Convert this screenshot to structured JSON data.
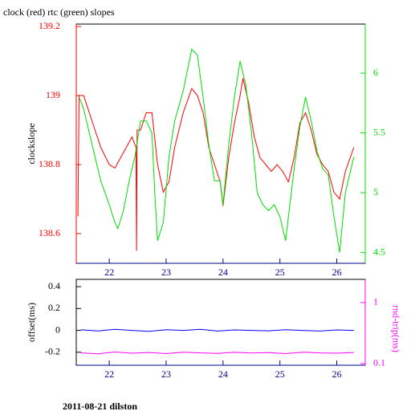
{
  "title": "clock (red) rtc (green) slopes",
  "footer": "2011-08-21 dilston",
  "chart_data": [
    {
      "type": "line",
      "ylabel": "clockslope",
      "xlim": [
        21.42,
        26.5
      ],
      "xticks": [
        22,
        23,
        24,
        25,
        26
      ],
      "xcolor": "#00008b",
      "ylim": [
        138.514,
        139.207
      ],
      "yticks": [
        138.6,
        138.8,
        139,
        139.2
      ],
      "ycolor": "#ff0000",
      "y2lim": [
        4.41,
        6.41
      ],
      "y2ticks": [
        4.5,
        5,
        5.5,
        6
      ],
      "y2color": "#00dd00",
      "series": [
        {
          "name": "clock",
          "color": "#ff0000",
          "x": [
            21.45,
            21.47,
            21.55,
            21.65,
            21.75,
            21.85,
            22.0,
            22.1,
            22.2,
            22.3,
            22.4,
            22.47,
            22.48,
            22.49,
            22.55,
            22.65,
            22.75,
            22.85,
            22.95,
            23.05,
            23.15,
            23.3,
            23.45,
            23.55,
            23.65,
            23.75,
            23.85,
            23.95,
            24.0,
            24.1,
            24.2,
            24.3,
            24.35,
            24.45,
            24.55,
            24.65,
            24.75,
            24.85,
            24.95,
            25.05,
            25.15,
            25.25,
            25.35,
            25.45,
            25.55,
            25.65,
            25.75,
            25.85,
            25.95,
            26.05,
            26.15,
            26.3
          ],
          "values": [
            138.65,
            139.0,
            139.0,
            138.95,
            138.9,
            138.85,
            138.8,
            138.79,
            138.82,
            138.85,
            138.88,
            138.85,
            138.55,
            138.9,
            138.9,
            138.95,
            138.95,
            138.8,
            138.72,
            138.75,
            138.85,
            138.95,
            139.02,
            139.0,
            138.95,
            138.85,
            138.8,
            138.75,
            138.68,
            138.82,
            138.92,
            139.0,
            139.05,
            138.98,
            138.88,
            138.82,
            138.8,
            138.78,
            138.8,
            138.78,
            138.75,
            138.82,
            138.92,
            138.95,
            138.9,
            138.83,
            138.8,
            138.78,
            138.72,
            138.7,
            138.78,
            138.85
          ]
        },
        {
          "name": "rtc",
          "color": "#00dd00",
          "axis": "y2",
          "x": [
            21.47,
            21.55,
            21.65,
            21.75,
            21.85,
            22.0,
            22.1,
            22.15,
            22.25,
            22.35,
            22.45,
            22.55,
            22.65,
            22.75,
            22.8,
            22.85,
            22.95,
            23.05,
            23.15,
            23.3,
            23.45,
            23.55,
            23.65,
            23.75,
            23.85,
            23.95,
            24.0,
            24.1,
            24.2,
            24.3,
            24.4,
            24.5,
            24.6,
            24.7,
            24.8,
            24.9,
            25.0,
            25.1,
            25.15,
            25.25,
            25.35,
            25.45,
            25.55,
            25.65,
            25.75,
            25.85,
            25.95,
            26.05,
            26.15,
            26.3
          ],
          "values": [
            5.8,
            5.7,
            5.5,
            5.3,
            5.1,
            4.9,
            4.75,
            4.7,
            4.85,
            5.1,
            5.3,
            5.6,
            5.6,
            5.5,
            5.0,
            4.6,
            4.75,
            5.3,
            5.6,
            5.85,
            6.2,
            6.15,
            5.8,
            5.4,
            5.1,
            5.1,
            4.9,
            5.4,
            5.8,
            6.1,
            5.9,
            5.5,
            5.0,
            4.9,
            4.85,
            4.9,
            4.8,
            4.6,
            4.8,
            5.2,
            5.55,
            5.8,
            5.6,
            5.35,
            5.2,
            5.15,
            4.8,
            4.5,
            5.0,
            5.3
          ]
        }
      ]
    },
    {
      "type": "line",
      "ylabel": "offset(ms)",
      "y2label": "rnd-trip(ms)",
      "xlim": [
        21.42,
        26.5
      ],
      "xticks": [
        22,
        23,
        24,
        25,
        26
      ],
      "xcolor": "#00008b",
      "ylim": [
        -0.319,
        0.467
      ],
      "yticks": [
        -0.2,
        0,
        0.2,
        0.4
      ],
      "ycolor": "#000000",
      "y2lim": [
        0.094,
        2.4
      ],
      "y2ticks": [
        0.1,
        1
      ],
      "y2color": "#ff00ff",
      "y2log": true,
      "series": [
        {
          "name": "offset",
          "color": "#0000ff",
          "x": [
            21.5,
            21.8,
            22.1,
            22.4,
            22.7,
            23.0,
            23.3,
            23.6,
            23.9,
            24.2,
            24.5,
            24.8,
            25.1,
            25.4,
            25.7,
            26.0,
            26.3
          ],
          "values": [
            0.005,
            -0.005,
            0.01,
            0.0,
            -0.008,
            0.006,
            0.0,
            0.01,
            -0.006,
            0.004,
            0.0,
            -0.004,
            0.006,
            0.0,
            -0.006,
            0.004,
            0.0
          ]
        },
        {
          "name": "rnd-trip",
          "color": "#ff00ff",
          "axis": "y2",
          "x": [
            21.5,
            21.8,
            22.1,
            22.4,
            22.7,
            23.0,
            23.3,
            23.6,
            23.9,
            24.2,
            24.5,
            24.8,
            25.1,
            25.4,
            25.7,
            26.0,
            26.3
          ],
          "values": [
            0.15,
            0.145,
            0.155,
            0.148,
            0.152,
            0.146,
            0.154,
            0.15,
            0.147,
            0.153,
            0.149,
            0.151,
            0.146,
            0.154,
            0.15,
            0.148,
            0.152
          ]
        }
      ]
    }
  ]
}
